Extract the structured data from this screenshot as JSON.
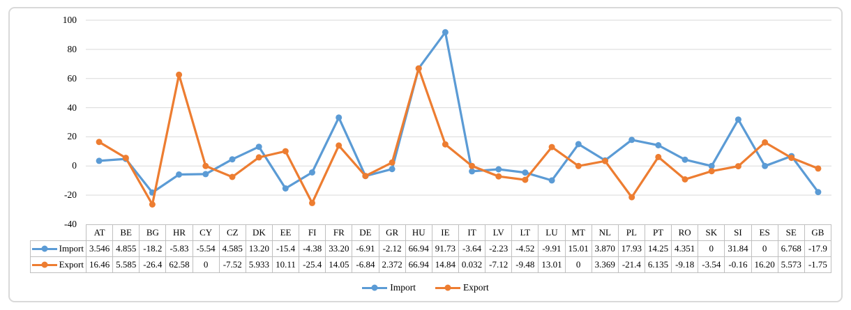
{
  "chart_data": {
    "type": "line",
    "title": "",
    "xlabel": "",
    "ylabel": "",
    "categories": [
      "AT",
      "BE",
      "BG",
      "HR",
      "CY",
      "CZ",
      "DK",
      "EE",
      "FI",
      "FR",
      "DE",
      "GR",
      "HU",
      "IE",
      "IT",
      "LV",
      "LT",
      "LU",
      "MT",
      "NL",
      "PL",
      "PT",
      "RO",
      "SK",
      "SI",
      "ES",
      "SE",
      "GB"
    ],
    "series": [
      {
        "name": "Import",
        "color": "#5B9BD5",
        "values": [
          3.546,
          4.855,
          -18.2,
          -5.83,
          -5.54,
          4.585,
          13.2,
          -15.4,
          -4.38,
          33.2,
          -6.91,
          -2.12,
          66.94,
          91.73,
          -3.64,
          -2.23,
          -4.52,
          -9.91,
          15.01,
          3.87,
          17.93,
          14.25,
          4.351,
          0,
          31.84,
          0,
          6.768,
          -17.9
        ],
        "labels": [
          "3.546",
          "4.855",
          "-18.2",
          "-5.83",
          "-5.54",
          "4.585",
          "13.20",
          "-15.4",
          "-4.38",
          "33.20",
          "-6.91",
          "-2.12",
          "66.94",
          "91.73",
          "-3.64",
          "-2.23",
          "-4.52",
          "-9.91",
          "15.01",
          "3.870",
          "17.93",
          "14.25",
          "4.351",
          "0",
          "31.84",
          "0",
          "6.768",
          "-17.9"
        ]
      },
      {
        "name": "Export",
        "color": "#ED7D31",
        "values": [
          16.46,
          5.585,
          -26.4,
          62.58,
          0,
          -7.52,
          5.933,
          10.11,
          -25.4,
          14.05,
          -6.84,
          2.372,
          66.94,
          14.84,
          0.032,
          -7.12,
          -9.48,
          13.01,
          0,
          3.369,
          -21.4,
          6.135,
          -9.18,
          -3.54,
          -0.16,
          16.2,
          5.573,
          -1.75
        ],
        "labels": [
          "16.46",
          "5.585",
          "-26.4",
          "62.58",
          "0",
          "-7.52",
          "5.933",
          "10.11",
          "-25.4",
          "14.05",
          "-6.84",
          "2.372",
          "66.94",
          "14.84",
          "0.032",
          "-7.12",
          "-9.48",
          "13.01",
          "0",
          "3.369",
          "-21.4",
          "6.135",
          "-9.18",
          "-3.54",
          "-0.16",
          "16.20",
          "5.573",
          "-1.75"
        ]
      }
    ],
    "ylim": [
      -40,
      100
    ],
    "yticks": [
      100,
      80,
      60,
      40,
      20,
      0,
      -20,
      -40
    ],
    "grid": true,
    "legend_position": "bottom",
    "data_table_shown": true
  },
  "colors": {
    "gridline": "#D9D9D9",
    "table_border": "#BFBFBF",
    "frame_border": "#D9D9D9",
    "text": "#000000"
  }
}
